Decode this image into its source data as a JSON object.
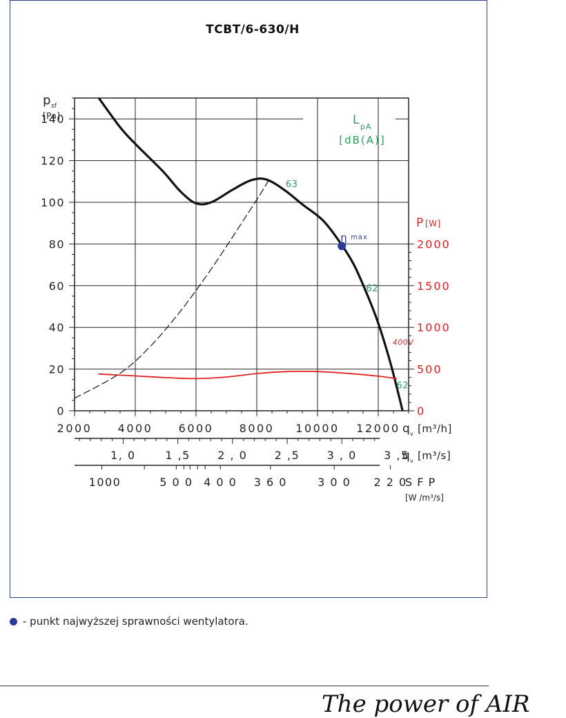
{
  "chart_data": {
    "type": "line",
    "title": "TCBT/6-630/H",
    "y_left": {
      "label": "p",
      "label_sub": "sf",
      "unit": "[Pa]",
      "range": [
        0,
        150
      ],
      "ticks": [
        "0",
        "20",
        "40",
        "60",
        "80",
        "100",
        "120",
        "140"
      ]
    },
    "y_right": {
      "label": "P",
      "unit": "[W]",
      "range": [
        0,
        2000
      ],
      "ticks": [
        "0",
        "500",
        "1000",
        "1500",
        "2000"
      ]
    },
    "x_m3h": {
      "label": "q",
      "label_sub": "v",
      "unit": "[m³/h]",
      "range": [
        2000,
        13000
      ],
      "ticks": [
        "2000",
        "4000",
        "6000",
        "8000",
        "10000",
        "12000"
      ]
    },
    "x_m3s": {
      "label": "q",
      "label_sub": "v",
      "unit": "[m³/s]",
      "ticks": [
        {
          "label": "1, 0",
          "value": 1.0
        },
        {
          "label": "1 ,5",
          "value": 1.5
        },
        {
          "label": "2 , 0",
          "value": 2.0
        },
        {
          "label": "2 ,5",
          "value": 2.5
        },
        {
          "label": "3 , 0",
          "value": 3.0
        },
        {
          "label": "3 ,5",
          "value": 3.5
        }
      ]
    },
    "sfp": {
      "label": "S F P",
      "unit": "[W /m³/s]",
      "ticks": [
        {
          "label": "1000",
          "x": 3000
        },
        {
          "label": "5 0 0",
          "x": 5350
        },
        {
          "label": "4 0 0",
          "x": 6800
        },
        {
          "label": "3 6 0",
          "x": 8450
        },
        {
          "label": "3 0 0",
          "x": 10550
        },
        {
          "label": "2 2 0",
          "x": 12400
        }
      ]
    },
    "series": [
      {
        "color": "#111111",
        "axis": "left",
        "points": [
          [
            2800,
            150
          ],
          [
            3500,
            136
          ],
          [
            4000,
            128
          ],
          [
            4900,
            115
          ],
          [
            5500,
            105
          ],
          [
            6000,
            99.5
          ],
          [
            6500,
            100
          ],
          [
            7200,
            106
          ],
          [
            7800,
            110.5
          ],
          [
            8300,
            111
          ],
          [
            8900,
            106
          ],
          [
            9500,
            99
          ],
          [
            10200,
            91
          ],
          [
            10800,
            79.5
          ],
          [
            11200,
            70
          ],
          [
            11600,
            57
          ],
          [
            12000,
            42
          ],
          [
            12400,
            23
          ],
          [
            12700,
            6
          ],
          [
            12800,
            0
          ]
        ]
      },
      {
        "color": "#e02020",
        "axis": "right",
        "points": [
          [
            2800,
            440
          ],
          [
            4000,
            418
          ],
          [
            5000,
            398
          ],
          [
            6000,
            386
          ],
          [
            7000,
            405
          ],
          [
            8000,
            446
          ],
          [
            9000,
            470
          ],
          [
            10000,
            470
          ],
          [
            11000,
            448
          ],
          [
            12000,
            415
          ],
          [
            12600,
            385
          ]
        ]
      },
      {
        "color": "#111111",
        "dash": true,
        "axis": "left",
        "points": [
          [
            2000,
            6
          ],
          [
            3500,
            18
          ],
          [
            4500,
            31
          ],
          [
            5500,
            48
          ],
          [
            6500,
            68
          ],
          [
            7500,
            90
          ],
          [
            8100,
            103.5
          ],
          [
            8450,
            112
          ]
        ]
      }
    ],
    "sound_label": {
      "text": "L",
      "sub": "pA",
      "unit": "[dB(A)]",
      "color": "#2aa05a"
    },
    "sound_levels": [
      {
        "text": "63",
        "x": 9150,
        "y": 109
      },
      {
        "text": "62",
        "x": 11800,
        "y": 59
      },
      {
        "text": "62",
        "x": 12800,
        "y": 12.5
      }
    ],
    "voltage_label": {
      "text": "400V",
      "x": 12500,
      "y": 33
    },
    "efficiency_point": {
      "x": 10800,
      "y": 79,
      "label": "η",
      "sub": "max",
      "color": "#2b3a9a"
    },
    "grid": true
  },
  "legend_note": "- punkt najwyższej sprawności wentylatora.",
  "brand": "The power of AIR"
}
